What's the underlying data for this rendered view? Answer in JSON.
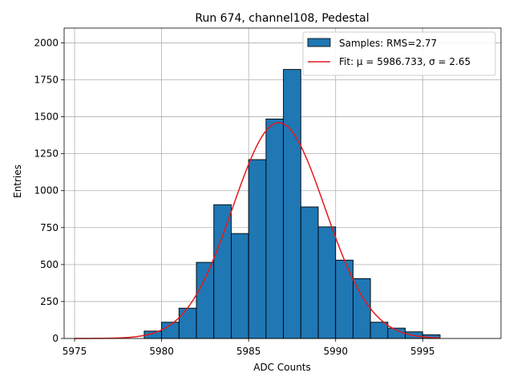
{
  "chart_data": {
    "type": "bar",
    "title": "Run 674, channel108, Pedestal",
    "xlabel": "ADC Counts",
    "ylabel": "Entries",
    "xlim": [
      5974.4,
      5999.5
    ],
    "ylim": [
      0,
      2100
    ],
    "grid": true,
    "legend_position": "top-right",
    "xticks": [
      5975,
      5980,
      5985,
      5990,
      5995
    ],
    "yticks": [
      0,
      250,
      500,
      750,
      1000,
      1250,
      1500,
      1750,
      2000
    ],
    "bar_color": "#1f77b4",
    "bar_edge_color": "#000000",
    "fit_color": "#e41a1c",
    "histogram": {
      "name": "Samples: RMS=2.77",
      "bin_edges": [
        5979,
        5980,
        5981,
        5982,
        5983,
        5984,
        5985,
        5986,
        5987,
        5988,
        5989,
        5990,
        5991,
        5992,
        5993,
        5994,
        5995,
        5996
      ],
      "values": [
        50,
        110,
        205,
        515,
        905,
        710,
        1210,
        1485,
        1820,
        890,
        755,
        530,
        405,
        110,
        70,
        45,
        25
      ]
    },
    "fit": {
      "name": "Fit: μ = 5986.733, σ = 2.65",
      "mu": 5986.733,
      "sigma": 2.65,
      "amplitude": 1460,
      "x_range": [
        5975,
        5996
      ]
    }
  }
}
